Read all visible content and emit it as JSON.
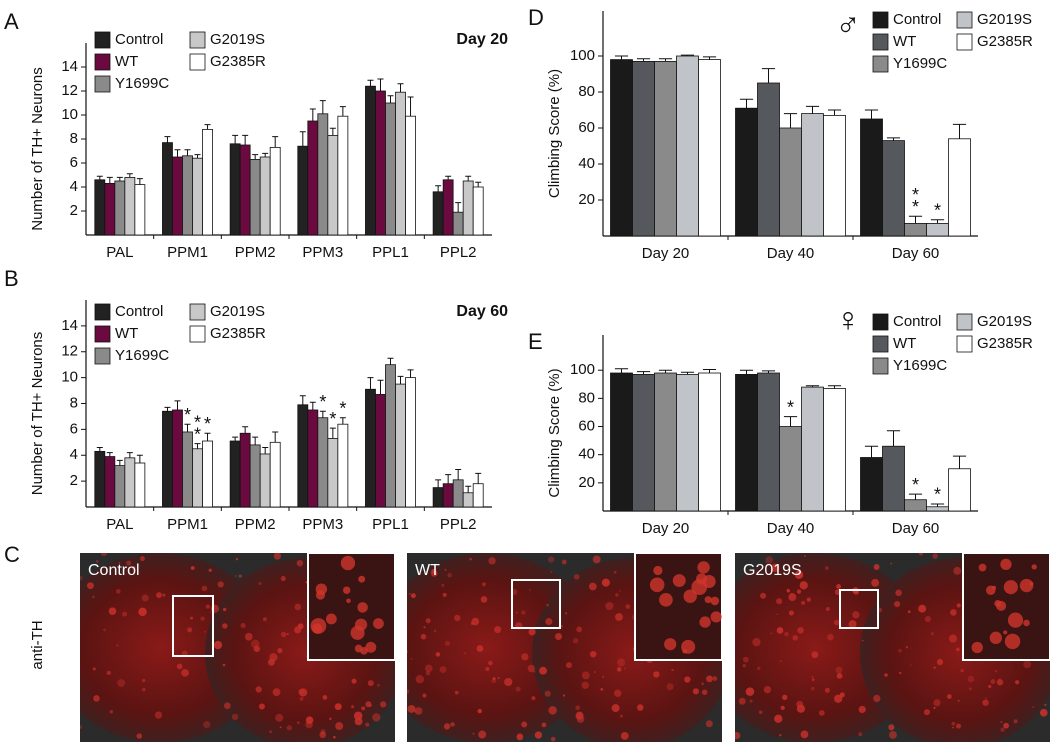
{
  "chart_data": [
    {
      "type": "bar",
      "panel": "A",
      "title": "Day 20",
      "y_label": "Number of TH+ Neurons",
      "categories": [
        "PAL",
        "PPM1",
        "PPM2",
        "PPM3",
        "PPL1",
        "PPL2"
      ],
      "ylim": [
        0,
        16
      ],
      "yticks": [
        2,
        4,
        6,
        8,
        10,
        12,
        14
      ],
      "series": [
        {
          "name": "Control",
          "color": "#222222",
          "values": [
            4.6,
            7.7,
            7.6,
            7.4,
            12.4,
            3.6
          ],
          "errors": [
            0.3,
            0.5,
            0.7,
            1.2,
            0.5,
            0.5
          ]
        },
        {
          "name": "WT",
          "color": "#6b0a3e",
          "values": [
            4.3,
            6.5,
            7.5,
            9.5,
            12.0,
            4.6
          ],
          "errors": [
            0.5,
            0.6,
            0.8,
            1.0,
            1.0,
            0.3
          ]
        },
        {
          "name": "Y1699C",
          "color": "#8a8a8a",
          "values": [
            4.5,
            6.6,
            6.3,
            10.1,
            11.0,
            1.9
          ],
          "errors": [
            0.3,
            0.5,
            0.4,
            1.1,
            0.6,
            0.8
          ]
        },
        {
          "name": "G2019S",
          "color": "#c8c8c8",
          "values": [
            4.8,
            6.4,
            6.5,
            8.3,
            11.9,
            4.5
          ],
          "errors": [
            0.3,
            0.3,
            0.3,
            0.6,
            0.7,
            0.4
          ]
        },
        {
          "name": "G2385R",
          "color": "#ffffff",
          "values": [
            4.2,
            8.8,
            7.3,
            9.9,
            9.9,
            4.0
          ],
          "errors": [
            0.5,
            0.4,
            0.9,
            0.8,
            1.6,
            0.4
          ]
        }
      ]
    },
    {
      "type": "bar",
      "panel": "B",
      "title": "Day 60",
      "y_label": "Number of TH+ Neurons",
      "categories": [
        "PAL",
        "PPM1",
        "PPM2",
        "PPM3",
        "PPL1",
        "PPL2"
      ],
      "ylim": [
        0,
        16
      ],
      "yticks": [
        2,
        4,
        6,
        8,
        10,
        12,
        14
      ],
      "series": [
        {
          "name": "Control",
          "color": "#222222",
          "values": [
            4.3,
            7.4,
            5.1,
            7.9,
            9.1,
            1.5
          ],
          "errors": [
            0.3,
            0.3,
            0.3,
            0.7,
            0.9,
            0.6
          ]
        },
        {
          "name": "WT",
          "color": "#6b0a3e",
          "values": [
            3.9,
            7.5,
            5.7,
            7.5,
            8.7,
            1.8
          ],
          "errors": [
            0.3,
            0.7,
            0.5,
            0.6,
            1.1,
            0.7
          ]
        },
        {
          "name": "Y1699C",
          "color": "#8a8a8a",
          "values": [
            3.2,
            5.8,
            4.8,
            6.9,
            11.0,
            2.1
          ],
          "errors": [
            0.4,
            0.6,
            0.6,
            0.5,
            0.5,
            0.8
          ],
          "stars": [
            null,
            "*",
            null,
            "*",
            null,
            null
          ]
        },
        {
          "name": "G2019S",
          "color": "#c8c8c8",
          "values": [
            3.8,
            4.5,
            4.1,
            5.3,
            9.5,
            1.1
          ],
          "errors": [
            0.4,
            0.4,
            0.5,
            0.8,
            0.6,
            0.5
          ],
          "stars": [
            null,
            "**",
            null,
            "*",
            null,
            null
          ]
        },
        {
          "name": "G2385R",
          "color": "#ffffff",
          "values": [
            3.4,
            5.1,
            5.0,
            6.4,
            10.0,
            1.8
          ],
          "errors": [
            0.6,
            0.6,
            0.8,
            0.5,
            0.6,
            0.8
          ],
          "stars": [
            null,
            "*",
            null,
            "*",
            null,
            null
          ]
        }
      ]
    },
    {
      "type": "bar",
      "panel": "D",
      "symbol": "♂",
      "y_label": "Climbing Score (%)",
      "categories": [
        "Day 20",
        "Day 40",
        "Day 60"
      ],
      "ylim": [
        0,
        125
      ],
      "yticks": [
        20,
        40,
        60,
        80,
        100
      ],
      "series": [
        {
          "name": "Control",
          "color": "#1a1a1a",
          "values": [
            98,
            71,
            65
          ],
          "errors": [
            2,
            5,
            5
          ]
        },
        {
          "name": "WT",
          "color": "#55595d",
          "values": [
            97,
            85,
            53
          ],
          "errors": [
            1.5,
            8,
            1.5
          ]
        },
        {
          "name": "Y1699C",
          "color": "#8a8a8a",
          "values": [
            97,
            60,
            7
          ],
          "errors": [
            1.5,
            8,
            4
          ],
          "stars": [
            null,
            null,
            "**"
          ]
        },
        {
          "name": "G2019S",
          "color": "#c0c4c8",
          "values": [
            100,
            68,
            7
          ],
          "errors": [
            0.5,
            4,
            2
          ],
          "stars": [
            null,
            null,
            "*"
          ]
        },
        {
          "name": "G2385R",
          "color": "#ffffff",
          "values": [
            98,
            67,
            54
          ],
          "errors": [
            1.5,
            3,
            8
          ]
        }
      ]
    },
    {
      "type": "bar",
      "panel": "E",
      "symbol": "♀",
      "y_label": "Climbing Score (%)",
      "categories": [
        "Day 20",
        "Day 40",
        "Day 60"
      ],
      "ylim": [
        0,
        125
      ],
      "yticks": [
        20,
        40,
        60,
        80,
        100
      ],
      "series": [
        {
          "name": "Control",
          "color": "#1a1a1a",
          "values": [
            98,
            97,
            38
          ],
          "errors": [
            3,
            3,
            8
          ]
        },
        {
          "name": "WT",
          "color": "#55595d",
          "values": [
            97,
            98,
            46
          ],
          "errors": [
            2,
            1.5,
            11
          ]
        },
        {
          "name": "Y1699C",
          "color": "#8a8a8a",
          "values": [
            98,
            60,
            8
          ],
          "errors": [
            2,
            7,
            4
          ],
          "stars": [
            null,
            "*",
            "*"
          ]
        },
        {
          "name": "G2019S",
          "color": "#c0c4c8",
          "values": [
            97,
            88,
            3
          ],
          "errors": [
            1.5,
            1,
            2
          ],
          "stars": [
            null,
            null,
            "*"
          ]
        },
        {
          "name": "G2385R",
          "color": "#ffffff",
          "values": [
            98,
            87,
            30
          ],
          "errors": [
            2.5,
            2,
            9
          ]
        }
      ]
    }
  ],
  "panel_c": {
    "panel": "C",
    "stain": "anti-TH",
    "images": [
      "Control",
      "WT",
      "G2019S"
    ]
  }
}
